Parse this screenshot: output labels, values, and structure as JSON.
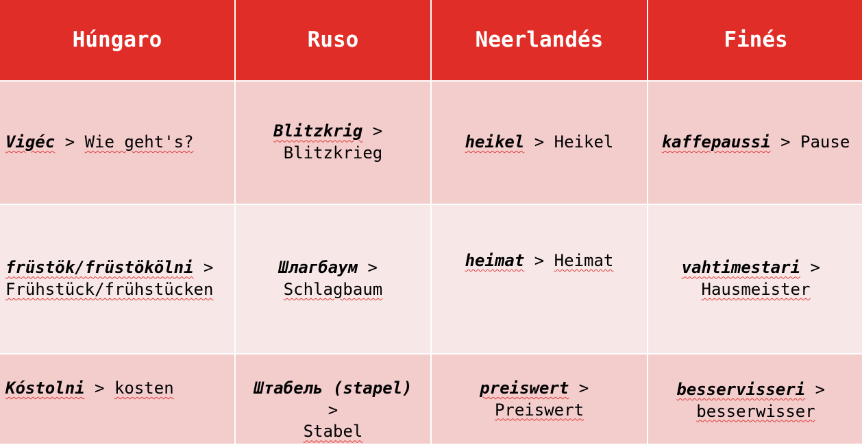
{
  "table": {
    "headers": [
      "Húngaro",
      "Ruso",
      "Neerlandés",
      "Finés"
    ],
    "rows": [
      [
        {
          "term": "Vigéc",
          "sep": " > ",
          "source": "Wie geht's?"
        },
        {
          "term": "Blitzkrig",
          "sep": " > ",
          "source": "Blitzkrieg"
        },
        {
          "term": "heikel",
          "sep": " > ",
          "source": "Heikel"
        },
        {
          "term": "kaffepaussi",
          "sep": " > ",
          "source": "Pause"
        }
      ],
      [
        {
          "term": "früstök/früstökölni",
          "sep": " > ",
          "source": "Frühstück/frühstücken"
        },
        {
          "term": "Шлагбаум",
          "sep": " > ",
          "source": "Schlagbaum"
        },
        {
          "term": "heimat",
          "sep": " > ",
          "source": "Heimat"
        },
        {
          "term": "vahtimestari",
          "sep": " > ",
          "source": "Hausmeister"
        }
      ],
      [
        {
          "term": "Kóstolni",
          "sep": " > ",
          "source": "kosten"
        },
        {
          "term": "Штабель (stapel)",
          "sep": " > ",
          "source": "Stabel"
        },
        {
          "term": "preiswert",
          "sep": " > ",
          "source": "Preiswert"
        },
        {
          "term": "besservisseri",
          "sep": " > ",
          "source": "besserwisser"
        }
      ]
    ]
  }
}
